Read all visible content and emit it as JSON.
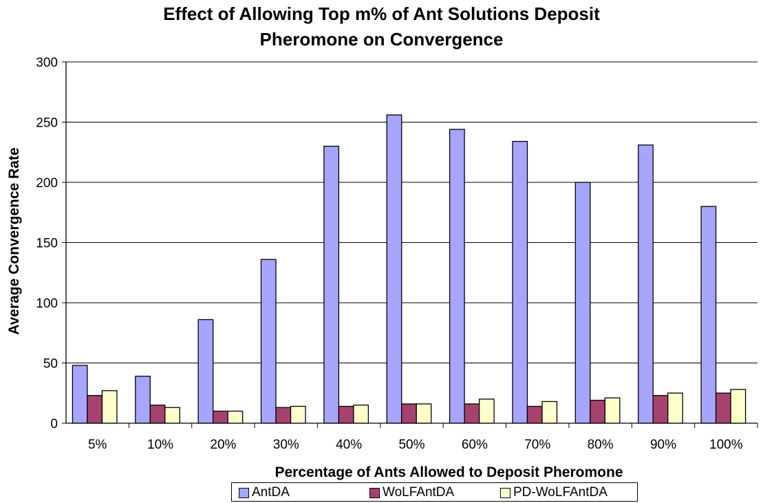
{
  "chart_data": {
    "type": "bar",
    "title_lines": [
      "Effect of Allowing Top m% of Ant Solutions Deposit",
      "Pheromone on Convergence"
    ],
    "xlabel": "Percentage of Ants Allowed to Deposit Pheromone",
    "ylabel": "Average Convergence Rate",
    "ylim": [
      0,
      300
    ],
    "yticks": [
      0,
      50,
      100,
      150,
      200,
      250,
      300
    ],
    "grid": true,
    "legend_position": "bottom",
    "categories": [
      "5%",
      "10%",
      "20%",
      "30%",
      "40%",
      "50%",
      "60%",
      "70%",
      "80%",
      "90%",
      "100%"
    ],
    "series": [
      {
        "name": "AntDA",
        "color": "#a6a6ff",
        "values": [
          48,
          39,
          86,
          136,
          230,
          256,
          244,
          234,
          200,
          231,
          180
        ]
      },
      {
        "name": "WoLFAntDA",
        "color": "#a6426e",
        "values": [
          23,
          15,
          10,
          13,
          14,
          16,
          16,
          14,
          19,
          23,
          25
        ]
      },
      {
        "name": "PD-WoLFAntDA",
        "color": "#ffffcc",
        "values": [
          27,
          13,
          10,
          14,
          15,
          16,
          20,
          18,
          21,
          25,
          28
        ]
      }
    ]
  }
}
